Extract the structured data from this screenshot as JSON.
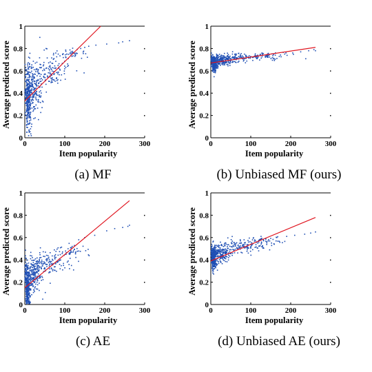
{
  "figure": {
    "captions": [
      "(a) MF",
      "(b) Unbiased MF (ours)",
      "(c) AE",
      "(d) Unbiased AE (ours)"
    ]
  },
  "colors": {
    "points": "#1f4fb4",
    "fit_line": "#e0141e",
    "axis": "#000000"
  },
  "chart_data": [
    {
      "type": "scatter",
      "title": "",
      "xlabel": "Item popularity",
      "ylabel": "Average predicted score",
      "xlim": [
        0,
        300
      ],
      "ylim": [
        0,
        1
      ],
      "xticks": [
        0,
        100,
        200,
        300
      ],
      "yticks": [
        0,
        0.2,
        0.4,
        0.6,
        0.8,
        1
      ],
      "xtick_labels": [
        "0",
        "100",
        "200",
        "300"
      ],
      "ytick_labels": [
        "0",
        "0.2",
        "0.4",
        "0.6",
        "0.8",
        "1"
      ],
      "grid": false,
      "scatter_clusters": [
        {
          "x_center": 4,
          "x_spread": 6,
          "y_center": 0.34,
          "y_spread": 0.2,
          "count": 260
        },
        {
          "x_center": 18,
          "x_spread": 14,
          "y_center": 0.42,
          "y_spread": 0.14,
          "count": 200
        },
        {
          "x_center": 55,
          "x_spread": 30,
          "y_center": 0.6,
          "y_spread": 0.09,
          "count": 150
        },
        {
          "x_center": 110,
          "x_spread": 25,
          "y_center": 0.75,
          "y_spread": 0.04,
          "count": 50
        }
      ],
      "sparse_points": [
        [
          140,
          0.8
        ],
        [
          150,
          0.81
        ],
        [
          160,
          0.82
        ],
        [
          178,
          0.83
        ],
        [
          205,
          0.84
        ],
        [
          235,
          0.85
        ],
        [
          245,
          0.86
        ],
        [
          262,
          0.87
        ]
      ],
      "fit_line": [
        [
          0,
          0.33
        ],
        [
          190,
          1.0
        ]
      ]
    },
    {
      "type": "scatter",
      "title": "",
      "xlabel": "Item popularity",
      "ylabel": "Average predicted score",
      "xlim": [
        0,
        300
      ],
      "ylim": [
        0,
        1
      ],
      "xticks": [
        0,
        100,
        200,
        300
      ],
      "yticks": [
        0,
        0.2,
        0.4,
        0.6,
        0.8,
        1
      ],
      "xtick_labels": [
        "0",
        "100",
        "200",
        "300"
      ],
      "ytick_labels": [
        "0",
        "0.2",
        "0.4",
        "0.6",
        "0.8",
        "1"
      ],
      "grid": false,
      "scatter_clusters": [
        {
          "x_center": 4,
          "x_spread": 6,
          "y_center": 0.66,
          "y_spread": 0.05,
          "count": 250
        },
        {
          "x_center": 25,
          "x_spread": 18,
          "y_center": 0.69,
          "y_spread": 0.035,
          "count": 200
        },
        {
          "x_center": 80,
          "x_spread": 40,
          "y_center": 0.72,
          "y_spread": 0.025,
          "count": 140
        },
        {
          "x_center": 150,
          "x_spread": 30,
          "y_center": 0.74,
          "y_spread": 0.02,
          "count": 30
        }
      ],
      "sparse_points": [
        [
          185,
          0.75
        ],
        [
          205,
          0.76
        ],
        [
          225,
          0.77
        ],
        [
          245,
          0.78
        ],
        [
          258,
          0.79
        ],
        [
          262,
          0.78
        ]
      ],
      "fit_line": [
        [
          0,
          0.67
        ],
        [
          262,
          0.81
        ]
      ]
    },
    {
      "type": "scatter",
      "title": "",
      "xlabel": "Item popularity",
      "ylabel": "Average predicted score",
      "xlim": [
        0,
        300
      ],
      "ylim": [
        0,
        1
      ],
      "xticks": [
        0,
        100,
        200,
        300
      ],
      "yticks": [
        0,
        0.2,
        0.4,
        0.6,
        0.8,
        1
      ],
      "xtick_labels": [
        "0",
        "100",
        "200",
        "300"
      ],
      "ytick_labels": [
        "0",
        "0.2",
        "0.4",
        "0.6",
        "0.8",
        "1"
      ],
      "grid": false,
      "scatter_clusters": [
        {
          "x_center": 3,
          "x_spread": 5,
          "y_center": 0.14,
          "y_spread": 0.12,
          "count": 260
        },
        {
          "x_center": 18,
          "x_spread": 14,
          "y_center": 0.25,
          "y_spread": 0.1,
          "count": 220
        },
        {
          "x_center": 55,
          "x_spread": 30,
          "y_center": 0.37,
          "y_spread": 0.07,
          "count": 160
        },
        {
          "x_center": 110,
          "x_spread": 25,
          "y_center": 0.48,
          "y_spread": 0.04,
          "count": 50
        }
      ],
      "sparse_points": [
        [
          135,
          0.58
        ],
        [
          150,
          0.6
        ],
        [
          175,
          0.62
        ],
        [
          205,
          0.66
        ],
        [
          225,
          0.68
        ],
        [
          245,
          0.69
        ],
        [
          258,
          0.7
        ],
        [
          262,
          0.71
        ]
      ],
      "fit_line": [
        [
          0,
          0.15
        ],
        [
          262,
          0.93
        ]
      ]
    },
    {
      "type": "scatter",
      "title": "",
      "xlabel": "Item popularity",
      "ylabel": "Average predicted score",
      "xlim": [
        0,
        300
      ],
      "ylim": [
        0,
        1
      ],
      "xticks": [
        0,
        100,
        200,
        300
      ],
      "yticks": [
        0,
        0.2,
        0.4,
        0.6,
        0.8,
        1
      ],
      "xtick_labels": [
        "0",
        "100",
        "200",
        "300"
      ],
      "ytick_labels": [
        "0",
        "0.2",
        "0.4",
        "0.6",
        "0.8",
        "1"
      ],
      "grid": false,
      "scatter_clusters": [
        {
          "x_center": 3,
          "x_spread": 5,
          "y_center": 0.4,
          "y_spread": 0.07,
          "count": 260
        },
        {
          "x_center": 22,
          "x_spread": 16,
          "y_center": 0.45,
          "y_spread": 0.05,
          "count": 200
        },
        {
          "x_center": 70,
          "x_spread": 35,
          "y_center": 0.52,
          "y_spread": 0.04,
          "count": 140
        },
        {
          "x_center": 130,
          "x_spread": 25,
          "y_center": 0.57,
          "y_spread": 0.025,
          "count": 40
        }
      ],
      "sparse_points": [
        [
          165,
          0.6
        ],
        [
          190,
          0.61
        ],
        [
          210,
          0.62
        ],
        [
          235,
          0.63
        ],
        [
          250,
          0.64
        ],
        [
          262,
          0.65
        ]
      ],
      "fit_line": [
        [
          0,
          0.39
        ],
        [
          262,
          0.78
        ]
      ]
    }
  ]
}
